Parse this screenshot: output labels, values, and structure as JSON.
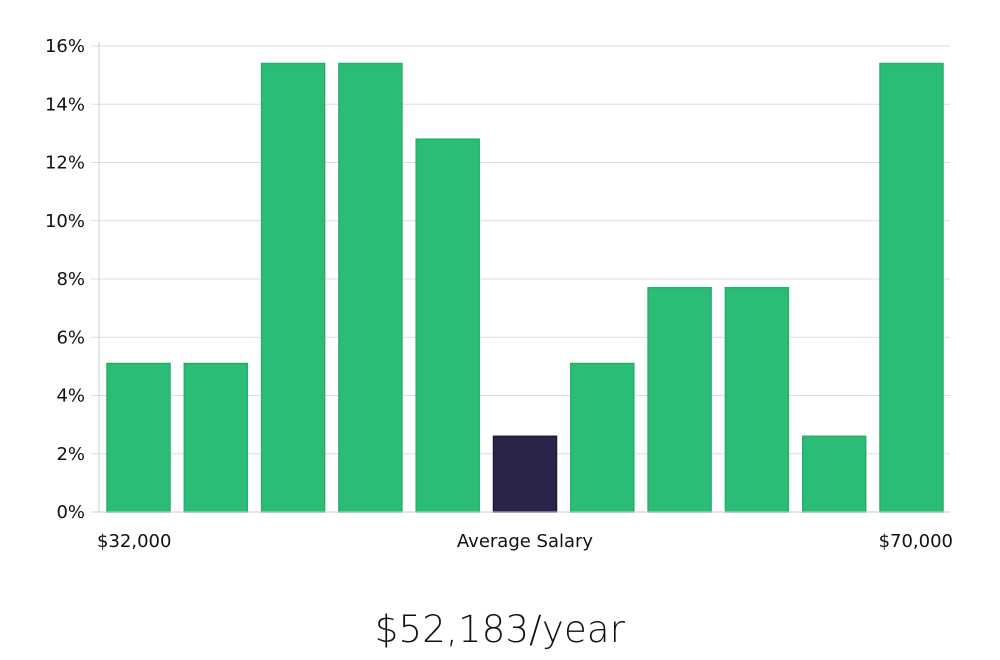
{
  "chart_data": {
    "type": "bar",
    "xlabel": "Average Salary",
    "x_range_labels": [
      "$32,000",
      "$70,000"
    ],
    "ylabel": "",
    "ylim": [
      0,
      16
    ],
    "y_ticks": [
      0,
      2,
      4,
      6,
      8,
      10,
      12,
      14,
      16
    ],
    "y_tick_suffix": "%",
    "grid": true,
    "legend": "none",
    "values": [
      5.1,
      5.1,
      15.4,
      15.4,
      12.8,
      2.6,
      5.1,
      7.7,
      7.7,
      2.6,
      15.4
    ],
    "highlight_index": 5,
    "colors": {
      "bar": "#2bbd78",
      "bar_edge": "#23b06b",
      "highlight": "#28244a",
      "grid": "#dddddd",
      "axis": "#cccccc"
    }
  },
  "summary": {
    "salary_text": "$52,183/year"
  }
}
